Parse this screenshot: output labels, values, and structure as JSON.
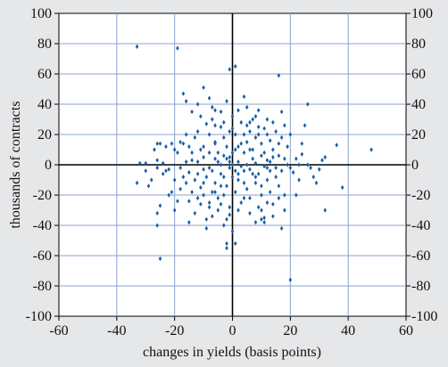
{
  "chart_data": {
    "type": "scatter",
    "title": "",
    "xlabel": "changes in yields (basis points)",
    "ylabel": "thousands of contracts",
    "xlim": [
      -60,
      60
    ],
    "ylim": [
      -100,
      100
    ],
    "x_ticks": [
      "-60",
      "-40",
      "-20",
      "0",
      "20",
      "40",
      "60"
    ],
    "y_ticks": [
      "-100",
      "-80",
      "-60",
      "-40",
      "-20",
      "0",
      "20",
      "40",
      "60",
      "80",
      "100"
    ],
    "grid": true,
    "right_axis_mirrors_left": true,
    "colors": {
      "background": "#e6e7e9",
      "plot_background": "#ffffff",
      "grid": "#8aa0cf",
      "marker": "#1b5fa6",
      "zero_lines": "#000000"
    },
    "series": [
      {
        "marker": "diamond",
        "points": [
          [
            -33,
            78
          ],
          [
            -19,
            77
          ],
          [
            -1,
            63
          ],
          [
            1,
            65
          ],
          [
            16,
            59
          ],
          [
            -10,
            51
          ],
          [
            -17,
            47
          ],
          [
            -16,
            42
          ],
          [
            -7,
            38
          ],
          [
            4,
            45
          ],
          [
            26,
            40
          ],
          [
            17,
            35
          ],
          [
            -25,
            14
          ],
          [
            -26,
            14
          ],
          [
            -32,
            1
          ],
          [
            -30,
            1
          ],
          [
            -33,
            -12
          ],
          [
            -28,
            -10
          ],
          [
            -26,
            -2
          ],
          [
            -26,
            3
          ],
          [
            -24,
            1
          ],
          [
            -23,
            -4
          ],
          [
            -22,
            -3
          ],
          [
            -26,
            -32
          ],
          [
            -25,
            -27
          ],
          [
            -26,
            -40
          ],
          [
            -25,
            -62
          ],
          [
            -20,
            10
          ],
          [
            -19,
            8
          ],
          [
            -18,
            15
          ],
          [
            -17,
            14
          ],
          [
            -16,
            20
          ],
          [
            -15,
            12
          ],
          [
            -14,
            3
          ],
          [
            -13,
            18
          ],
          [
            -12,
            22
          ],
          [
            -11,
            10
          ],
          [
            -10,
            5
          ],
          [
            -9,
            27
          ],
          [
            -8,
            20
          ],
          [
            -7,
            30
          ],
          [
            -6,
            15
          ],
          [
            -5,
            8
          ],
          [
            -4,
            25
          ],
          [
            -3,
            18
          ],
          [
            -2,
            12
          ],
          [
            -1,
            22
          ],
          [
            0,
            32
          ],
          [
            1,
            20
          ],
          [
            2,
            12
          ],
          [
            3,
            28
          ],
          [
            4,
            20
          ],
          [
            5,
            15
          ],
          [
            6,
            22
          ],
          [
            7,
            10
          ],
          [
            8,
            18
          ],
          [
            9,
            25
          ],
          [
            10,
            14
          ],
          [
            11,
            8
          ],
          [
            12,
            20
          ],
          [
            13,
            16
          ],
          [
            14,
            10
          ],
          [
            15,
            22
          ],
          [
            16,
            6
          ],
          [
            17,
            18
          ],
          [
            18,
            4
          ],
          [
            19,
            12
          ],
          [
            20,
            -2
          ],
          [
            22,
            4
          ],
          [
            24,
            7
          ],
          [
            25,
            26
          ],
          [
            26,
            0
          ],
          [
            28,
            -8
          ],
          [
            30,
            -3
          ],
          [
            31,
            3
          ],
          [
            32,
            5
          ],
          [
            36,
            13
          ],
          [
            38,
            -15
          ],
          [
            48,
            10
          ],
          [
            32,
            -30
          ],
          [
            -18,
            -2
          ],
          [
            -17,
            -8
          ],
          [
            -16,
            -12
          ],
          [
            -15,
            -5
          ],
          [
            -14,
            -18
          ],
          [
            -13,
            -10
          ],
          [
            -12,
            -22
          ],
          [
            -11,
            -15
          ],
          [
            -10,
            -3
          ],
          [
            -9,
            -8
          ],
          [
            -8,
            -25
          ],
          [
            -7,
            -18
          ],
          [
            -6,
            -12
          ],
          [
            -5,
            -30
          ],
          [
            -4,
            -6
          ],
          [
            -3,
            -20
          ],
          [
            -2,
            -14
          ],
          [
            -1,
            -28
          ],
          [
            0,
            -8
          ],
          [
            1,
            -18
          ],
          [
            2,
            -10
          ],
          [
            3,
            -25
          ],
          [
            4,
            -4
          ],
          [
            5,
            -16
          ],
          [
            6,
            -22
          ],
          [
            7,
            -6
          ],
          [
            8,
            -12
          ],
          [
            9,
            -28
          ],
          [
            10,
            -20
          ],
          [
            11,
            -35
          ],
          [
            12,
            -10
          ],
          [
            13,
            -18
          ],
          [
            14,
            -26
          ],
          [
            15,
            -8
          ],
          [
            16,
            -14
          ],
          [
            17,
            -4
          ],
          [
            18,
            -20
          ],
          [
            -20,
            -10
          ],
          [
            -19,
            -24
          ],
          [
            -21,
            -18
          ],
          [
            -22,
            -20
          ],
          [
            -9,
            -42
          ],
          [
            -2,
            -52
          ],
          [
            -2,
            -55
          ],
          [
            1,
            -52
          ],
          [
            10,
            -36
          ],
          [
            11,
            -38
          ],
          [
            17,
            -42
          ],
          [
            22,
            -20
          ],
          [
            20,
            -76
          ],
          [
            -12,
            2
          ],
          [
            -10,
            12
          ],
          [
            -8,
            -2
          ],
          [
            -6,
            4
          ],
          [
            -4,
            0
          ],
          [
            -3,
            6
          ],
          [
            -1,
            -2
          ],
          [
            0,
            8
          ],
          [
            1,
            -4
          ],
          [
            2,
            2
          ],
          [
            3,
            -1
          ],
          [
            4,
            8
          ],
          [
            5,
            0
          ],
          [
            6,
            -3
          ],
          [
            7,
            4
          ],
          [
            8,
            1
          ],
          [
            9,
            -6
          ],
          [
            10,
            6
          ],
          [
            11,
            -1
          ],
          [
            12,
            3
          ],
          [
            13,
            -4
          ],
          [
            14,
            5
          ],
          [
            15,
            -2
          ],
          [
            -7,
            -4
          ],
          [
            -5,
            2
          ],
          [
            -3,
            -8
          ],
          [
            -1,
            5
          ],
          [
            1,
            10
          ],
          [
            3,
            14
          ],
          [
            5,
            26
          ],
          [
            7,
            30
          ],
          [
            9,
            20
          ],
          [
            11,
            24
          ],
          [
            13,
            2
          ],
          [
            -11,
            32
          ],
          [
            -6,
            36
          ],
          [
            -4,
            35
          ],
          [
            -2,
            42
          ],
          [
            -12,
            -6
          ],
          [
            -10,
            -12
          ],
          [
            -8,
            8
          ],
          [
            -6,
            -18
          ],
          [
            -4,
            -26
          ],
          [
            -2,
            -36
          ],
          [
            0,
            -44
          ],
          [
            2,
            -30
          ],
          [
            4,
            -22
          ],
          [
            6,
            -32
          ],
          [
            8,
            -38
          ],
          [
            10,
            -30
          ],
          [
            12,
            -25
          ],
          [
            14,
            -34
          ],
          [
            16,
            -22
          ],
          [
            18,
            -30
          ],
          [
            -14,
            8
          ],
          [
            -16,
            2
          ],
          [
            -18,
            -16
          ],
          [
            -20,
            -30
          ],
          [
            -15,
            -24
          ],
          [
            -13,
            -32
          ],
          [
            -11,
            -26
          ],
          [
            -9,
            -36
          ],
          [
            -7,
            -34
          ],
          [
            -5,
            -22
          ],
          [
            -3,
            -40
          ],
          [
            -1,
            -33
          ],
          [
            19,
            0
          ],
          [
            21,
            -5
          ],
          [
            23,
            0
          ],
          [
            27,
            -2
          ],
          [
            29,
            -12
          ],
          [
            23,
            -10
          ],
          [
            -27,
            10
          ],
          [
            -24,
            -6
          ],
          [
            -29,
            -14
          ],
          [
            -30,
            -4
          ],
          [
            -21,
            14
          ],
          [
            -23,
            12
          ],
          [
            2,
            36
          ],
          [
            6,
            28
          ],
          [
            8,
            32
          ],
          [
            12,
            30
          ],
          [
            14,
            28
          ],
          [
            -8,
            44
          ],
          [
            -6,
            26
          ],
          [
            -3,
            28
          ],
          [
            0,
            24
          ],
          [
            5,
            38
          ],
          [
            9,
            36
          ],
          [
            18,
            26
          ],
          [
            -14,
            35
          ],
          [
            -12,
            40
          ],
          [
            16,
            14
          ],
          [
            20,
            20
          ],
          [
            24,
            14
          ],
          [
            -15,
            -38
          ],
          [
            0,
            0
          ],
          [
            -1,
            2
          ],
          [
            2,
            -6
          ],
          [
            4,
            -12
          ],
          [
            -2,
            4
          ],
          [
            6,
            10
          ],
          [
            -4,
            -14
          ],
          [
            -6,
            14
          ],
          [
            8,
            -8
          ],
          [
            10,
            -14
          ],
          [
            12,
            -2
          ],
          [
            -10,
            -20
          ],
          [
            -8,
            -28
          ]
        ]
      }
    ]
  }
}
